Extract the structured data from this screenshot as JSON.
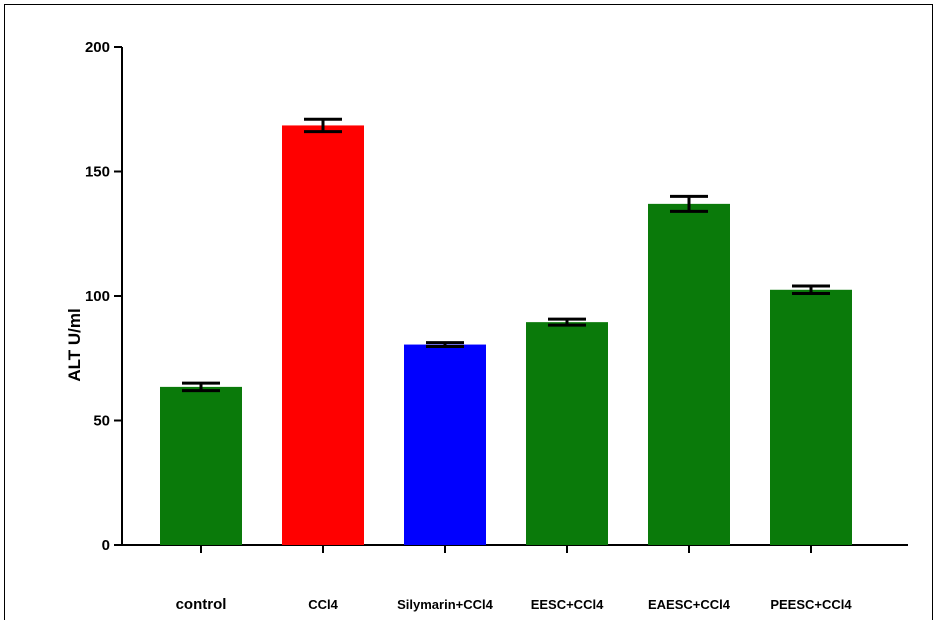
{
  "chart_data": {
    "type": "bar",
    "title": "",
    "xlabel": "",
    "ylabel": "ALT U/ml",
    "ylim": [
      0,
      200
    ],
    "yticks": [
      0,
      50,
      100,
      150,
      200
    ],
    "grid": false,
    "categories": [
      "control",
      "CCl4",
      "Silymarin+CCl4",
      "EESC+CCl4",
      "EAESC+CCl4",
      "PEESC+CCl4"
    ],
    "values": [
      63.5,
      168.5,
      80.5,
      89.5,
      137,
      102.5
    ],
    "errors": [
      1.5,
      2.5,
      0.8,
      1.2,
      3,
      1.5
    ],
    "colors": [
      "#0a7a0a",
      "#ff0000",
      "#0000ff",
      "#0a7a0a",
      "#0a7a0a",
      "#0a7a0a"
    ]
  }
}
